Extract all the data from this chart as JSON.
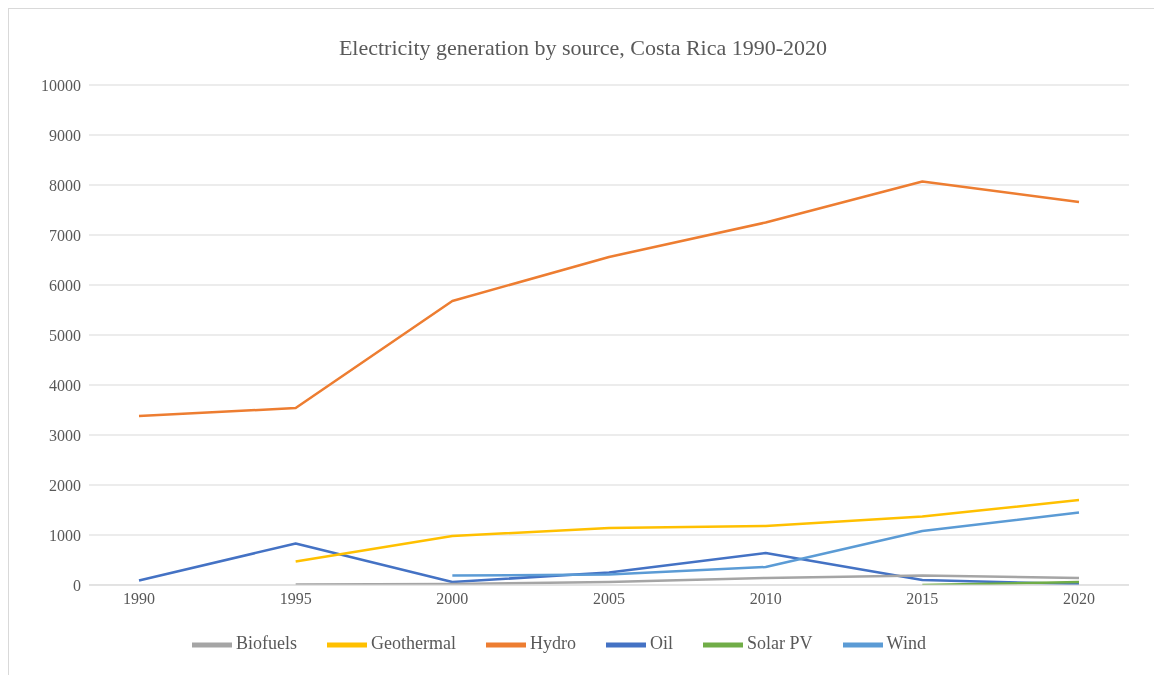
{
  "chart_data": {
    "type": "line",
    "title": "Electricity generation by source, Costa Rica 1990-2020",
    "categories": [
      "1990",
      "1995",
      "2000",
      "2005",
      "2010",
      "2015",
      "2020"
    ],
    "series": [
      {
        "name": "Oil",
        "color": "#4472c4",
        "values": [
          90,
          830,
          60,
          250,
          640,
          100,
          20
        ]
      },
      {
        "name": "Hydro",
        "color": "#ed7d31",
        "values": [
          3380,
          3540,
          5680,
          6560,
          7250,
          8070,
          7660
        ]
      },
      {
        "name": "Biofuels",
        "color": "#a5a5a5",
        "values": [
          null,
          10,
          20,
          60,
          140,
          190,
          140
        ]
      },
      {
        "name": "Geothermal",
        "color": "#ffc000",
        "values": [
          null,
          470,
          980,
          1140,
          1180,
          1370,
          1700
        ]
      },
      {
        "name": "Wind",
        "color": "#5b9bd5",
        "values": [
          null,
          null,
          190,
          210,
          360,
          1080,
          1450
        ]
      },
      {
        "name": "Solar PV",
        "color": "#70ad47",
        "values": [
          null,
          null,
          null,
          null,
          null,
          0,
          60
        ]
      }
    ],
    "ylim": [
      0,
      10000
    ],
    "yticks": [
      0,
      1000,
      2000,
      3000,
      4000,
      5000,
      6000,
      7000,
      8000,
      9000,
      10000
    ],
    "grid": "y",
    "legend": "bottom",
    "marker": "none",
    "line_style": "solid"
  }
}
